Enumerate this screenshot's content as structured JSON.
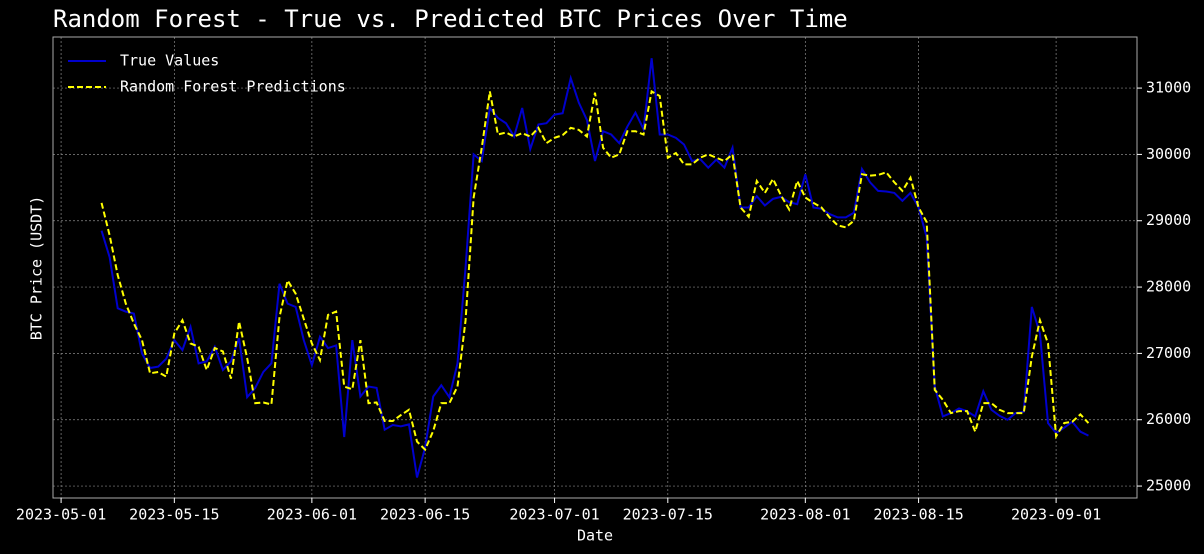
{
  "chart_data": {
    "type": "line",
    "title": "Random Forest - True vs. Predicted BTC Prices Over Time",
    "x_label": "Date",
    "y_label": "BTC Price (USDT)",
    "x": [
      "2023-05-06",
      "2023-05-07",
      "2023-05-08",
      "2023-05-09",
      "2023-05-10",
      "2023-05-11",
      "2023-05-12",
      "2023-05-13",
      "2023-05-14",
      "2023-05-15",
      "2023-05-16",
      "2023-05-17",
      "2023-05-18",
      "2023-05-19",
      "2023-05-20",
      "2023-05-21",
      "2023-05-22",
      "2023-05-23",
      "2023-05-24",
      "2023-05-25",
      "2023-05-26",
      "2023-05-27",
      "2023-05-28",
      "2023-05-29",
      "2023-05-30",
      "2023-05-31",
      "2023-06-01",
      "2023-06-02",
      "2023-06-03",
      "2023-06-04",
      "2023-06-05",
      "2023-06-06",
      "2023-06-07",
      "2023-06-08",
      "2023-06-09",
      "2023-06-10",
      "2023-06-11",
      "2023-06-12",
      "2023-06-13",
      "2023-06-14",
      "2023-06-15",
      "2023-06-16",
      "2023-06-17",
      "2023-06-18",
      "2023-06-19",
      "2023-06-20",
      "2023-06-21",
      "2023-06-22",
      "2023-06-23",
      "2023-06-24",
      "2023-06-25",
      "2023-06-26",
      "2023-06-27",
      "2023-06-28",
      "2023-06-29",
      "2023-06-30",
      "2023-07-01",
      "2023-07-02",
      "2023-07-03",
      "2023-07-04",
      "2023-07-05",
      "2023-07-06",
      "2023-07-07",
      "2023-07-08",
      "2023-07-09",
      "2023-07-10",
      "2023-07-11",
      "2023-07-12",
      "2023-07-13",
      "2023-07-14",
      "2023-07-15",
      "2023-07-16",
      "2023-07-17",
      "2023-07-18",
      "2023-07-19",
      "2023-07-20",
      "2023-07-21",
      "2023-07-22",
      "2023-07-23",
      "2023-07-24",
      "2023-07-25",
      "2023-07-26",
      "2023-07-27",
      "2023-07-28",
      "2023-07-29",
      "2023-07-30",
      "2023-07-31",
      "2023-08-01",
      "2023-08-02",
      "2023-08-03",
      "2023-08-04",
      "2023-08-05",
      "2023-08-06",
      "2023-08-07",
      "2023-08-08",
      "2023-08-09",
      "2023-08-10",
      "2023-08-11",
      "2023-08-12",
      "2023-08-13",
      "2023-08-14",
      "2023-08-15",
      "2023-08-16",
      "2023-08-17",
      "2023-08-18",
      "2023-08-19",
      "2023-08-20",
      "2023-08-21",
      "2023-08-22",
      "2023-08-23",
      "2023-08-24",
      "2023-08-25",
      "2023-08-26",
      "2023-08-27",
      "2023-08-28",
      "2023-08-29",
      "2023-08-30",
      "2023-08-31",
      "2023-09-01",
      "2023-09-02",
      "2023-09-03",
      "2023-09-04",
      "2023-09-05"
    ],
    "series": [
      {
        "name": "True Values",
        "color": "#0000cd",
        "dash": "solid",
        "values": [
          28850,
          28450,
          27680,
          27630,
          27600,
          27000,
          26780,
          26800,
          26920,
          27200,
          27050,
          27400,
          26850,
          26880,
          27100,
          26750,
          26880,
          27230,
          26340,
          26480,
          26720,
          26850,
          28050,
          27750,
          27700,
          27200,
          26820,
          27250,
          27080,
          27120,
          25740,
          27200,
          26350,
          26500,
          26480,
          25850,
          25920,
          25900,
          25930,
          25130,
          25580,
          26350,
          26520,
          26340,
          26850,
          28300,
          30000,
          29900,
          30700,
          30550,
          30470,
          30270,
          30700,
          30080,
          30450,
          30470,
          30600,
          30620,
          31150,
          30780,
          30520,
          29900,
          30350,
          30300,
          30170,
          30420,
          30630,
          30380,
          31450,
          30300,
          30300,
          30250,
          30150,
          29900,
          29930,
          29800,
          29920,
          29800,
          30100,
          29200,
          29200,
          29370,
          29230,
          29330,
          29360,
          29280,
          29250,
          29700,
          29200,
          29180,
          29100,
          29050,
          29050,
          29120,
          29780,
          29580,
          29450,
          29440,
          29420,
          29300,
          29420,
          29200,
          28750,
          26500,
          26050,
          26100,
          26170,
          26130,
          26050,
          26430,
          26150,
          26060,
          26000,
          26100,
          26120,
          27700,
          27300,
          25950,
          25800,
          25880,
          25970,
          25820,
          25760
        ]
      },
      {
        "name": "Random Forest Predictions",
        "color": "#ffff00",
        "dash": "dashed",
        "values": [
          29270,
          28780,
          28180,
          27750,
          27450,
          27200,
          26700,
          26720,
          26650,
          27300,
          27500,
          27150,
          27100,
          26750,
          27080,
          27030,
          26620,
          27480,
          26930,
          26250,
          26260,
          26230,
          27550,
          28100,
          27900,
          27520,
          27150,
          26900,
          27580,
          27630,
          26500,
          26460,
          27200,
          26250,
          26260,
          25980,
          25980,
          26070,
          26150,
          25670,
          25550,
          25830,
          26250,
          26250,
          26500,
          27500,
          29350,
          30100,
          30950,
          30300,
          30330,
          30270,
          30320,
          30270,
          30400,
          30170,
          30250,
          30290,
          30400,
          30370,
          30270,
          30930,
          30100,
          29950,
          30000,
          30350,
          30350,
          30300,
          30950,
          30880,
          29950,
          30020,
          29850,
          29850,
          29950,
          30000,
          29950,
          29900,
          30000,
          29200,
          29060,
          29600,
          29420,
          29630,
          29380,
          29170,
          29600,
          29350,
          29270,
          29200,
          29050,
          28930,
          28900,
          29000,
          29700,
          29680,
          29690,
          29730,
          29580,
          29450,
          29650,
          29200,
          28980,
          26450,
          26300,
          26100,
          26130,
          26130,
          25820,
          26250,
          26250,
          26150,
          26100,
          26100,
          26100,
          26950,
          27500,
          27150,
          25750,
          25950,
          25970,
          26080,
          25950
        ]
      }
    ],
    "xlim": [
      "2023-04-30",
      "2023-09-11"
    ],
    "xticks": [
      "2023-05-01",
      "2023-05-15",
      "2023-06-01",
      "2023-06-15",
      "2023-07-01",
      "2023-07-15",
      "2023-08-01",
      "2023-08-15",
      "2023-09-01"
    ],
    "ylim": [
      24820,
      31770
    ],
    "yticks": [
      25000,
      26000,
      27000,
      28000,
      29000,
      30000,
      31000
    ],
    "y_axis_side": "right",
    "grid": true,
    "legend": "upper left"
  }
}
